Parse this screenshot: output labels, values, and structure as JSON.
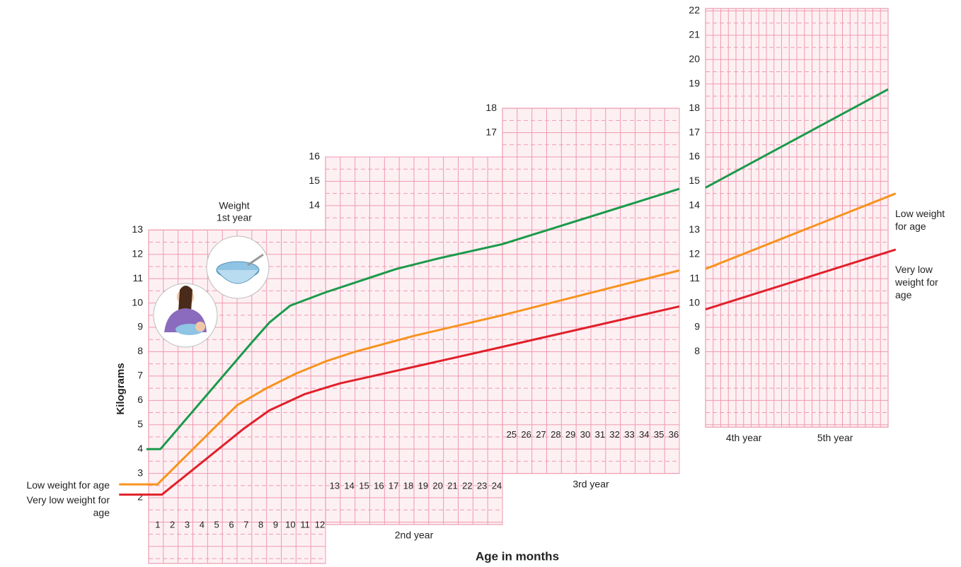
{
  "chart_data": {
    "type": "line",
    "title": "Weight",
    "ylabel": "Kilograms",
    "xlabel": "Age in months",
    "ylim": [
      -0.7,
      22.1
    ],
    "grid": true,
    "panels": [
      {
        "labels": [
          "1st year"
        ],
        "xlim": [
          0,
          12
        ],
        "ylim": [
          -0.7,
          13
        ],
        "yticks": [
          2,
          3,
          4,
          5,
          6,
          7,
          8,
          9,
          10,
          11,
          12,
          13
        ],
        "xticks": [
          1,
          2,
          3,
          4,
          5,
          6,
          7,
          8,
          9,
          10,
          11,
          12
        ]
      },
      {
        "labels": [
          "2nd year"
        ],
        "xlim": [
          12,
          24
        ],
        "ylim": [
          0.9,
          16
        ],
        "yticks": [
          14,
          15,
          16
        ],
        "xticks": [
          13,
          14,
          15,
          16,
          17,
          18,
          19,
          20,
          21,
          22,
          23,
          24
        ]
      },
      {
        "labels": [
          "3rd year"
        ],
        "xlim": [
          24,
          36
        ],
        "ylim": [
          3,
          18
        ],
        "yticks": [
          17,
          18
        ],
        "xticks": [
          25,
          26,
          27,
          28,
          29,
          30,
          31,
          32,
          33,
          34,
          35,
          36
        ]
      },
      {
        "labels": [
          "4th year",
          "5th year"
        ],
        "xlim": [
          36,
          60
        ],
        "ylim": [
          4.9,
          22.1
        ],
        "yticks": [
          8,
          9,
          10,
          11,
          12,
          13,
          14,
          15,
          16,
          17,
          18,
          19,
          20,
          21,
          22
        ],
        "xticks": []
      }
    ],
    "series": [
      {
        "color": "#1b9a4b",
        "x": [
          -0.15,
          0.8,
          7,
          8.2,
          9.6,
          12,
          13.9,
          16.8,
          19.7,
          24,
          36,
          36,
          36,
          60
        ],
        "values": [
          4.0,
          4.0,
          8.38,
          9.2,
          9.89,
          10.44,
          10.82,
          11.4,
          11.84,
          12.42,
          14.69,
          null,
          14.74,
          18.78
        ]
      },
      {
        "name": "Low weight for age",
        "color": "#f7931e",
        "x": [
          -2,
          0.6,
          6,
          8,
          10,
          12,
          14,
          18,
          24,
          36,
          36,
          36,
          61
        ],
        "values": [
          2.55,
          2.55,
          5.8,
          6.5,
          7.1,
          7.6,
          8.0,
          8.65,
          9.5,
          11.34,
          null,
          11.4,
          14.5
        ]
      },
      {
        "name": "Very low weight for age",
        "color": "#e0202a",
        "x": [
          -2,
          0.9,
          6.5,
          8.2,
          10.6,
          12,
          13,
          18.75,
          24,
          36,
          36,
          36,
          61
        ],
        "values": [
          2.13,
          2.13,
          4.86,
          5.59,
          6.26,
          6.52,
          6.7,
          7.48,
          8.2,
          9.86,
          null,
          9.74,
          12.2
        ]
      }
    ]
  }
}
